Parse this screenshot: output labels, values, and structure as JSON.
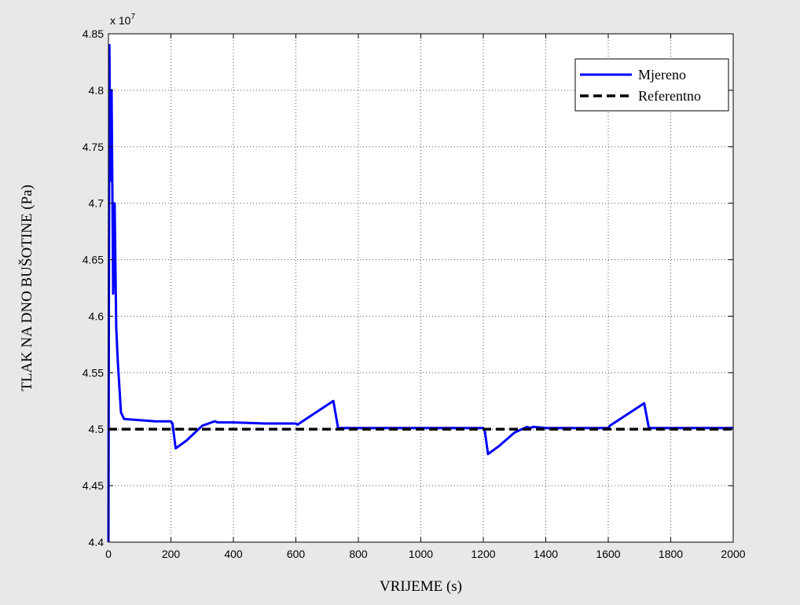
{
  "colors": {
    "figure_background": "#e8e8e8",
    "axes_background": "#ffffff",
    "grid": "#555555",
    "measured": "#0000ff",
    "reference": "#000000"
  },
  "chart_data": {
    "type": "line",
    "xlabel": "VRIJEME (s)",
    "ylabel": "TLAK NA DNO BUŠOTINE (Pa)",
    "xlim": [
      0,
      2000
    ],
    "ylim": [
      4.4,
      4.85
    ],
    "y_multiplier": {
      "base": "x 10",
      "exponent": "7"
    },
    "x_ticks": [
      0,
      200,
      400,
      600,
      800,
      1000,
      1200,
      1400,
      1600,
      1800,
      2000
    ],
    "x_tick_labels": [
      "0",
      "200",
      "400",
      "600",
      "800",
      "1000",
      "1200",
      "1400",
      "1600",
      "1800",
      "2000"
    ],
    "y_ticks": [
      4.4,
      4.45,
      4.5,
      4.55,
      4.6,
      4.65,
      4.7,
      4.75,
      4.8,
      4.85
    ],
    "y_tick_labels": [
      "4.4",
      "4.45",
      "4.5",
      "4.55",
      "4.6",
      "4.65",
      "4.7",
      "4.75",
      "4.8",
      "4.85"
    ],
    "grid": true,
    "grid_style": "dotted",
    "legend_position": "top-right",
    "series": [
      {
        "name": "Mjereno",
        "color": "#0000ff",
        "style": "solid",
        "x": [
          0,
          3,
          6,
          10,
          15,
          20,
          25,
          30,
          40,
          50,
          100,
          150,
          200,
          205,
          215,
          250,
          300,
          340,
          350,
          400,
          500,
          600,
          605,
          720,
          735,
          800,
          1000,
          1200,
          1205,
          1215,
          1250,
          1300,
          1340,
          1350,
          1360,
          1400,
          1500,
          1600,
          1605,
          1715,
          1730,
          1800,
          2000
        ],
        "y": [
          4.4,
          4.84,
          4.72,
          4.8,
          4.62,
          4.7,
          4.59,
          4.56,
          4.515,
          4.509,
          4.508,
          4.507,
          4.507,
          4.505,
          4.483,
          4.49,
          4.503,
          4.507,
          4.506,
          4.506,
          4.505,
          4.505,
          4.504,
          4.525,
          4.501,
          4.501,
          4.501,
          4.501,
          4.498,
          4.478,
          4.485,
          4.497,
          4.502,
          4.501,
          4.502,
          4.501,
          4.501,
          4.501,
          4.503,
          4.523,
          4.501,
          4.501,
          4.501
        ]
      },
      {
        "name": "Referentno",
        "color": "#000000",
        "style": "dashed",
        "x": [
          0,
          2000
        ],
        "y": [
          4.5,
          4.5
        ]
      }
    ]
  }
}
